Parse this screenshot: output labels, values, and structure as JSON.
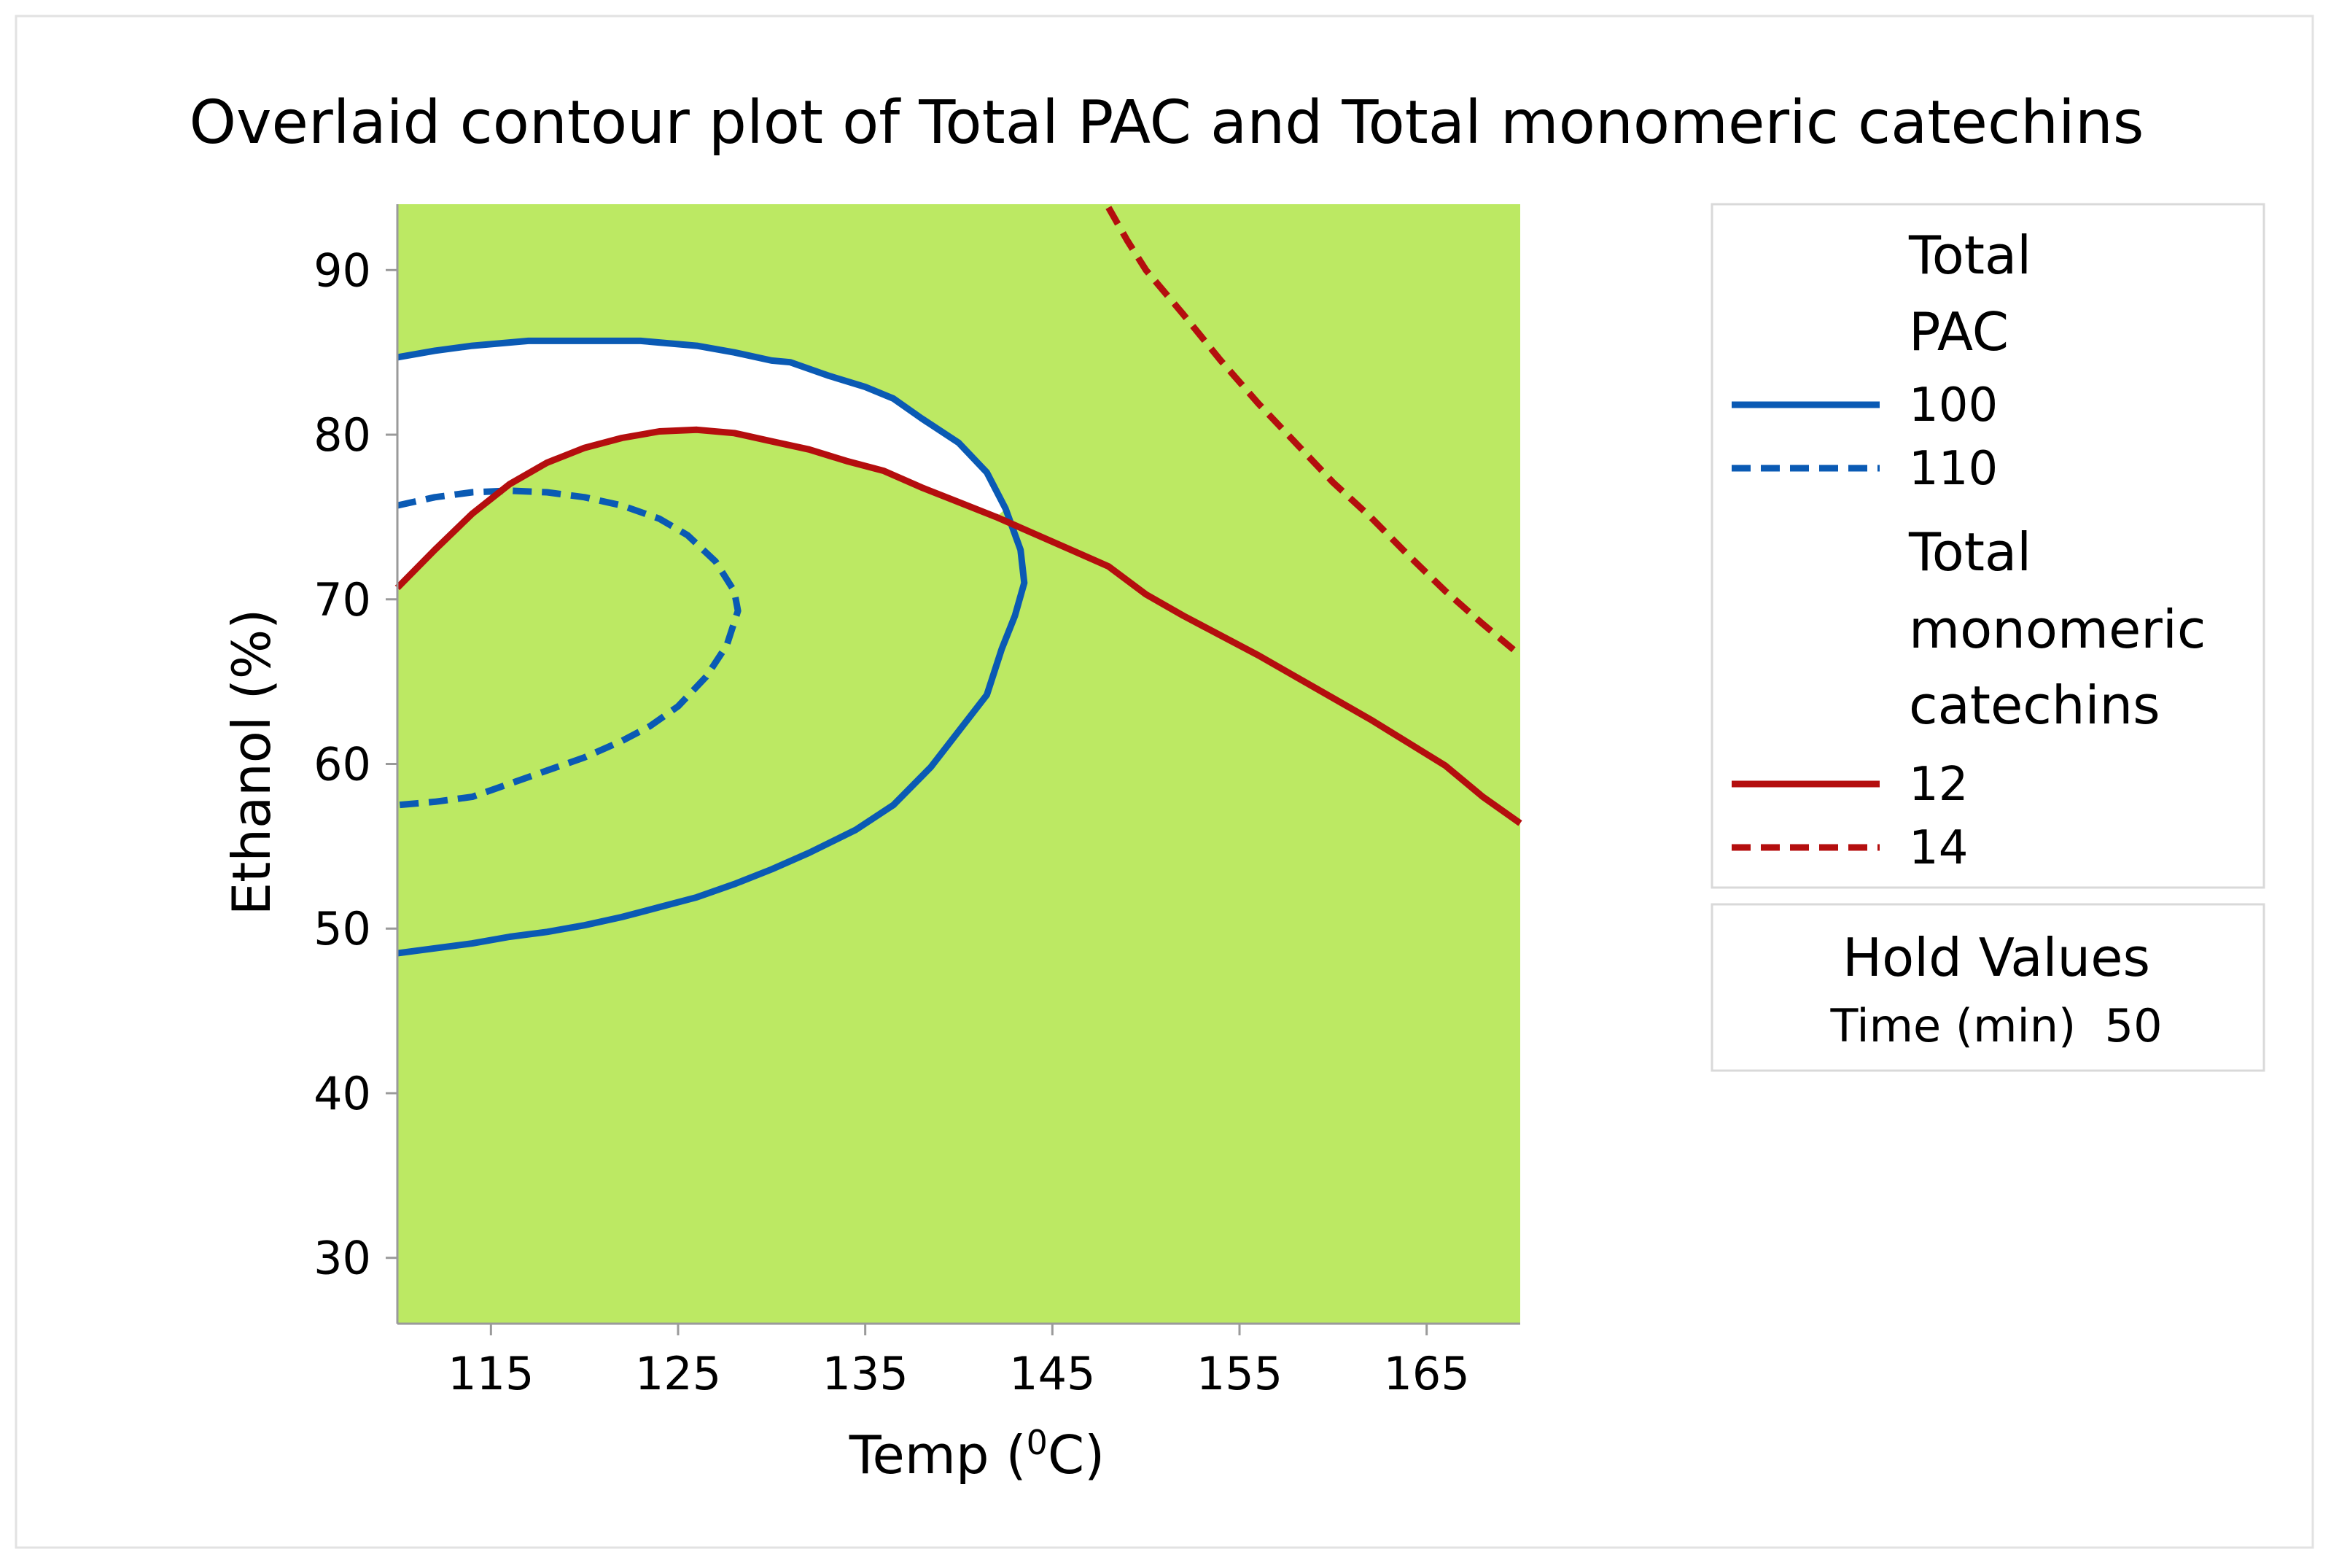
{
  "chart_data": {
    "type": "contour",
    "title": "Overlaid contour plot of Total PAC and Total monomeric catechins",
    "xlabel_main": "Temp (",
    "xlabel_sup": "0",
    "xlabel_tail": "C)",
    "ylabel": "Ethanol (%)",
    "xlim": [
      110,
      170
    ],
    "ylim": [
      26,
      94
    ],
    "xticks": [
      115,
      125,
      135,
      145,
      155,
      165
    ],
    "yticks": [
      30,
      40,
      50,
      60,
      70,
      80,
      90
    ],
    "feasible_region_color": "#bce963",
    "unshaded_region_color": "#ffffff",
    "legend": {
      "groups": [
        {
          "title_lines": [
            "Total",
            "PAC"
          ],
          "entries": [
            {
              "label": "100",
              "color": "#0a5ab4",
              "style": "solid"
            },
            {
              "label": "110",
              "color": "#0a5ab4",
              "style": "dashed"
            }
          ]
        },
        {
          "title_lines": [
            "Total",
            "monomeric",
            "catechins"
          ],
          "entries": [
            {
              "label": "12",
              "color": "#b40e0e",
              "style": "solid"
            },
            {
              "label": "14",
              "color": "#b40e0e",
              "style": "dashed"
            }
          ]
        }
      ],
      "hold_values_title": "Hold Values",
      "hold_values_text": "Time (min)  50"
    },
    "series": [
      {
        "response": "Total PAC",
        "level": 100,
        "color": "#0a5ab4",
        "style": "solid",
        "points": [
          [
            110,
            84.7
          ],
          [
            112,
            85.1
          ],
          [
            114,
            85.4
          ],
          [
            117,
            85.7
          ],
          [
            120,
            85.7
          ],
          [
            123,
            85.7
          ],
          [
            126,
            85.4
          ],
          [
            128,
            85.0
          ],
          [
            130,
            84.5
          ],
          [
            131,
            84.4
          ],
          [
            133,
            83.6
          ],
          [
            135,
            82.9
          ],
          [
            136.5,
            82.2
          ],
          [
            138,
            81.0
          ],
          [
            140,
            79.5
          ],
          [
            141.5,
            77.7
          ],
          [
            142.5,
            75.5
          ],
          [
            143.3,
            73.0
          ],
          [
            143.5,
            71.0
          ],
          [
            143.0,
            69.0
          ],
          [
            142.3,
            67.0
          ],
          [
            141.5,
            64.2
          ],
          [
            140,
            62.0
          ],
          [
            138.5,
            59.8
          ],
          [
            136.5,
            57.5
          ],
          [
            134.5,
            56.0
          ],
          [
            132,
            54.6
          ],
          [
            130,
            53.6
          ],
          [
            128,
            52.7
          ],
          [
            126,
            51.9
          ],
          [
            124,
            51.3
          ],
          [
            122,
            50.7
          ],
          [
            120,
            50.2
          ],
          [
            118,
            49.8
          ],
          [
            116,
            49.5
          ],
          [
            114,
            49.1
          ],
          [
            112,
            48.8
          ],
          [
            110,
            48.5
          ]
        ]
      },
      {
        "response": "Total PAC",
        "level": 110,
        "color": "#0a5ab4",
        "style": "dashed",
        "points": [
          [
            110,
            75.7
          ],
          [
            112,
            76.2
          ],
          [
            114,
            76.5
          ],
          [
            116,
            76.6
          ],
          [
            118,
            76.5
          ],
          [
            120,
            76.2
          ],
          [
            122,
            75.7
          ],
          [
            124,
            74.9
          ],
          [
            125.5,
            73.9
          ],
          [
            127,
            72.3
          ],
          [
            128,
            70.5
          ],
          [
            128.2,
            69.3
          ],
          [
            127.6,
            67.2
          ],
          [
            126.5,
            65.3
          ],
          [
            125,
            63.5
          ],
          [
            123.5,
            62.3
          ],
          [
            122,
            61.4
          ],
          [
            120,
            60.4
          ],
          [
            118,
            59.6
          ],
          [
            116,
            58.8
          ],
          [
            114,
            58.0
          ],
          [
            112,
            57.7
          ],
          [
            110,
            57.5
          ]
        ]
      },
      {
        "response": "Total monomeric catechins",
        "level": 12,
        "color": "#b40e0e",
        "style": "solid",
        "points": [
          [
            110,
            70.7
          ],
          [
            112,
            73.0
          ],
          [
            114,
            75.2
          ],
          [
            116,
            77.0
          ],
          [
            118,
            78.3
          ],
          [
            120,
            79.2
          ],
          [
            122,
            79.8
          ],
          [
            124,
            80.2
          ],
          [
            126,
            80.3
          ],
          [
            128,
            80.1
          ],
          [
            130,
            79.6
          ],
          [
            132,
            79.1
          ],
          [
            134,
            78.4
          ],
          [
            136,
            77.8
          ],
          [
            138,
            76.8
          ],
          [
            140,
            75.9
          ],
          [
            142,
            75.0
          ],
          [
            144,
            74.0
          ],
          [
            146,
            73.0
          ],
          [
            148,
            72.0
          ],
          [
            150,
            70.3
          ],
          [
            152,
            69.0
          ],
          [
            154,
            67.8
          ],
          [
            156,
            66.6
          ],
          [
            158,
            65.3
          ],
          [
            160,
            64.0
          ],
          [
            162,
            62.7
          ],
          [
            164,
            61.3
          ],
          [
            166,
            59.9
          ],
          [
            168,
            58.0
          ],
          [
            170,
            56.4
          ]
        ]
      },
      {
        "response": "Total monomeric catechins",
        "level": 14,
        "color": "#b40e0e",
        "style": "dashed",
        "points": [
          [
            148,
            93.8
          ],
          [
            149,
            91.8
          ],
          [
            150,
            90.0
          ],
          [
            152,
            87.3
          ],
          [
            154,
            84.5
          ],
          [
            156,
            81.9
          ],
          [
            158,
            79.5
          ],
          [
            160,
            77.1
          ],
          [
            162,
            75.0
          ],
          [
            164,
            72.7
          ],
          [
            166,
            70.5
          ],
          [
            168,
            68.5
          ],
          [
            170,
            66.6
          ]
        ]
      }
    ]
  }
}
